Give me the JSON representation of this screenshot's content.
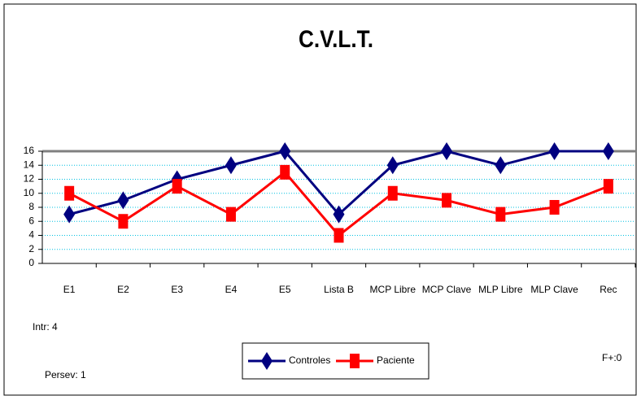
{
  "chart_data": {
    "type": "line",
    "title": "C.V.L.T.",
    "categories": [
      "E1",
      "E2",
      "E3",
      "E4",
      "E5",
      "Lista B",
      "MCP Libre",
      "MCP Clave",
      "MLP Libre",
      "MLP Clave",
      "Rec"
    ],
    "series": [
      {
        "name": "Controles",
        "color": "#000080",
        "values": [
          7,
          9,
          12,
          14,
          16,
          7,
          14,
          16,
          14,
          16,
          16
        ]
      },
      {
        "name": "Paciente",
        "color": "#ff0000",
        "values": [
          10,
          6,
          11,
          7,
          13,
          4,
          10,
          9,
          7,
          8,
          11
        ]
      }
    ],
    "ylim": [
      0,
      16
    ],
    "yticks": [
      0,
      2,
      4,
      6,
      8,
      10,
      12,
      14,
      16
    ],
    "grid": true,
    "annotations": [
      "Intr: 4",
      "Persev: 1",
      "F+:0"
    ],
    "legend": "bottom"
  }
}
